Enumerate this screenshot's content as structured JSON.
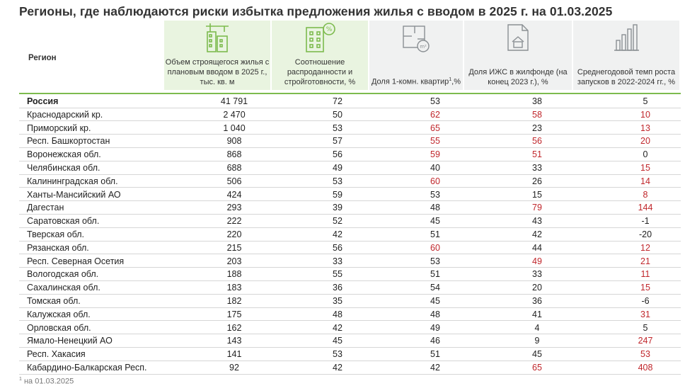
{
  "title": "Регионы, где наблюдаются риски избытка предложения жилья с вводом в 2025 г. на 01.03.2025",
  "colors": {
    "highlight_red": "#c0262b",
    "accent_green": "#7dbb4e",
    "header_green_bg": "#e9f4e0",
    "header_grey_bg": "#f0f1f1"
  },
  "table": {
    "region_header": "Регион",
    "columns": [
      {
        "icon": "building-crane-icon",
        "label": "Объем строящегося жилья с плановым вводом в 2025 г., тыс. кв. м"
      },
      {
        "icon": "building-percent-icon",
        "label": "Соотношение распроданности и стройготовности, %"
      },
      {
        "icon": "floor-plan-icon",
        "label_pre": "Доля 1-комн. квартир",
        "sup": "1",
        "label_post": ",%"
      },
      {
        "icon": "house-document-icon",
        "label": "Доля ИЖС в жилфонде (на конец 2023 г.), %"
      },
      {
        "icon": "bar-chart-building-icon",
        "label": "Среднегодовой темп роста запусков в 2022-2024 гг., %"
      }
    ],
    "rows": [
      {
        "name": "Россия",
        "total": true,
        "values": [
          "41 791",
          "72",
          "53",
          "38",
          "5"
        ],
        "red": [
          false,
          false,
          false,
          false,
          false
        ]
      },
      {
        "name": "Краснодарский кр.",
        "values": [
          "2 470",
          "50",
          "62",
          "58",
          "10"
        ],
        "red": [
          false,
          false,
          true,
          true,
          true
        ]
      },
      {
        "name": "Приморский кр.",
        "values": [
          "1 040",
          "53",
          "65",
          "23",
          "13"
        ],
        "red": [
          false,
          false,
          true,
          false,
          true
        ]
      },
      {
        "name": "Респ. Башкортостан",
        "values": [
          "908",
          "57",
          "55",
          "56",
          "20"
        ],
        "red": [
          false,
          false,
          true,
          true,
          true
        ]
      },
      {
        "name": "Воронежская обл.",
        "values": [
          "868",
          "56",
          "59",
          "51",
          "0"
        ],
        "red": [
          false,
          false,
          true,
          true,
          false
        ]
      },
      {
        "name": "Челябинская обл.",
        "values": [
          "688",
          "49",
          "40",
          "33",
          "15"
        ],
        "red": [
          false,
          false,
          false,
          false,
          true
        ]
      },
      {
        "name": "Калининградская обл.",
        "values": [
          "506",
          "53",
          "60",
          "26",
          "14"
        ],
        "red": [
          false,
          false,
          true,
          false,
          true
        ]
      },
      {
        "name": "Ханты-Мансийский АО",
        "values": [
          "424",
          "59",
          "53",
          "15",
          "8"
        ],
        "red": [
          false,
          false,
          false,
          false,
          true
        ]
      },
      {
        "name": "Дагестан",
        "values": [
          "293",
          "39",
          "48",
          "79",
          "144"
        ],
        "red": [
          false,
          false,
          false,
          true,
          true
        ]
      },
      {
        "name": "Саратовская обл.",
        "values": [
          "222",
          "52",
          "45",
          "43",
          "-1"
        ],
        "red": [
          false,
          false,
          false,
          false,
          false
        ]
      },
      {
        "name": "Тверская обл.",
        "values": [
          "220",
          "42",
          "51",
          "42",
          "-20"
        ],
        "red": [
          false,
          false,
          false,
          false,
          false
        ]
      },
      {
        "name": "Рязанская обл.",
        "values": [
          "215",
          "56",
          "60",
          "44",
          "12"
        ],
        "red": [
          false,
          false,
          true,
          false,
          true
        ]
      },
      {
        "name": "Респ. Северная Осетия",
        "values": [
          "203",
          "33",
          "53",
          "49",
          "21"
        ],
        "red": [
          false,
          false,
          false,
          true,
          true
        ]
      },
      {
        "name": "Вологодская обл.",
        "values": [
          "188",
          "55",
          "51",
          "33",
          "11"
        ],
        "red": [
          false,
          false,
          false,
          false,
          true
        ]
      },
      {
        "name": "Сахалинская обл.",
        "values": [
          "183",
          "36",
          "54",
          "20",
          "15"
        ],
        "red": [
          false,
          false,
          false,
          false,
          true
        ]
      },
      {
        "name": "Томская обл.",
        "values": [
          "182",
          "35",
          "45",
          "36",
          "-6"
        ],
        "red": [
          false,
          false,
          false,
          false,
          false
        ]
      },
      {
        "name": "Калужская обл.",
        "values": [
          "175",
          "48",
          "48",
          "41",
          "31"
        ],
        "red": [
          false,
          false,
          false,
          false,
          true
        ]
      },
      {
        "name": "Орловская обл.",
        "values": [
          "162",
          "42",
          "49",
          "4",
          "5"
        ],
        "red": [
          false,
          false,
          false,
          false,
          false
        ]
      },
      {
        "name": "Ямало-Ненецкий АО",
        "values": [
          "143",
          "45",
          "46",
          "9",
          "247"
        ],
        "red": [
          false,
          false,
          false,
          false,
          true
        ]
      },
      {
        "name": "Респ. Хакасия",
        "values": [
          "141",
          "53",
          "51",
          "45",
          "53"
        ],
        "red": [
          false,
          false,
          false,
          false,
          true
        ]
      },
      {
        "name": "Кабардино-Балкарская Респ.",
        "values": [
          "92",
          "42",
          "42",
          "65",
          "408"
        ],
        "red": [
          false,
          false,
          false,
          true,
          true
        ]
      }
    ]
  },
  "footnote": {
    "sup": "1",
    "text": "на 01.03.2025"
  }
}
